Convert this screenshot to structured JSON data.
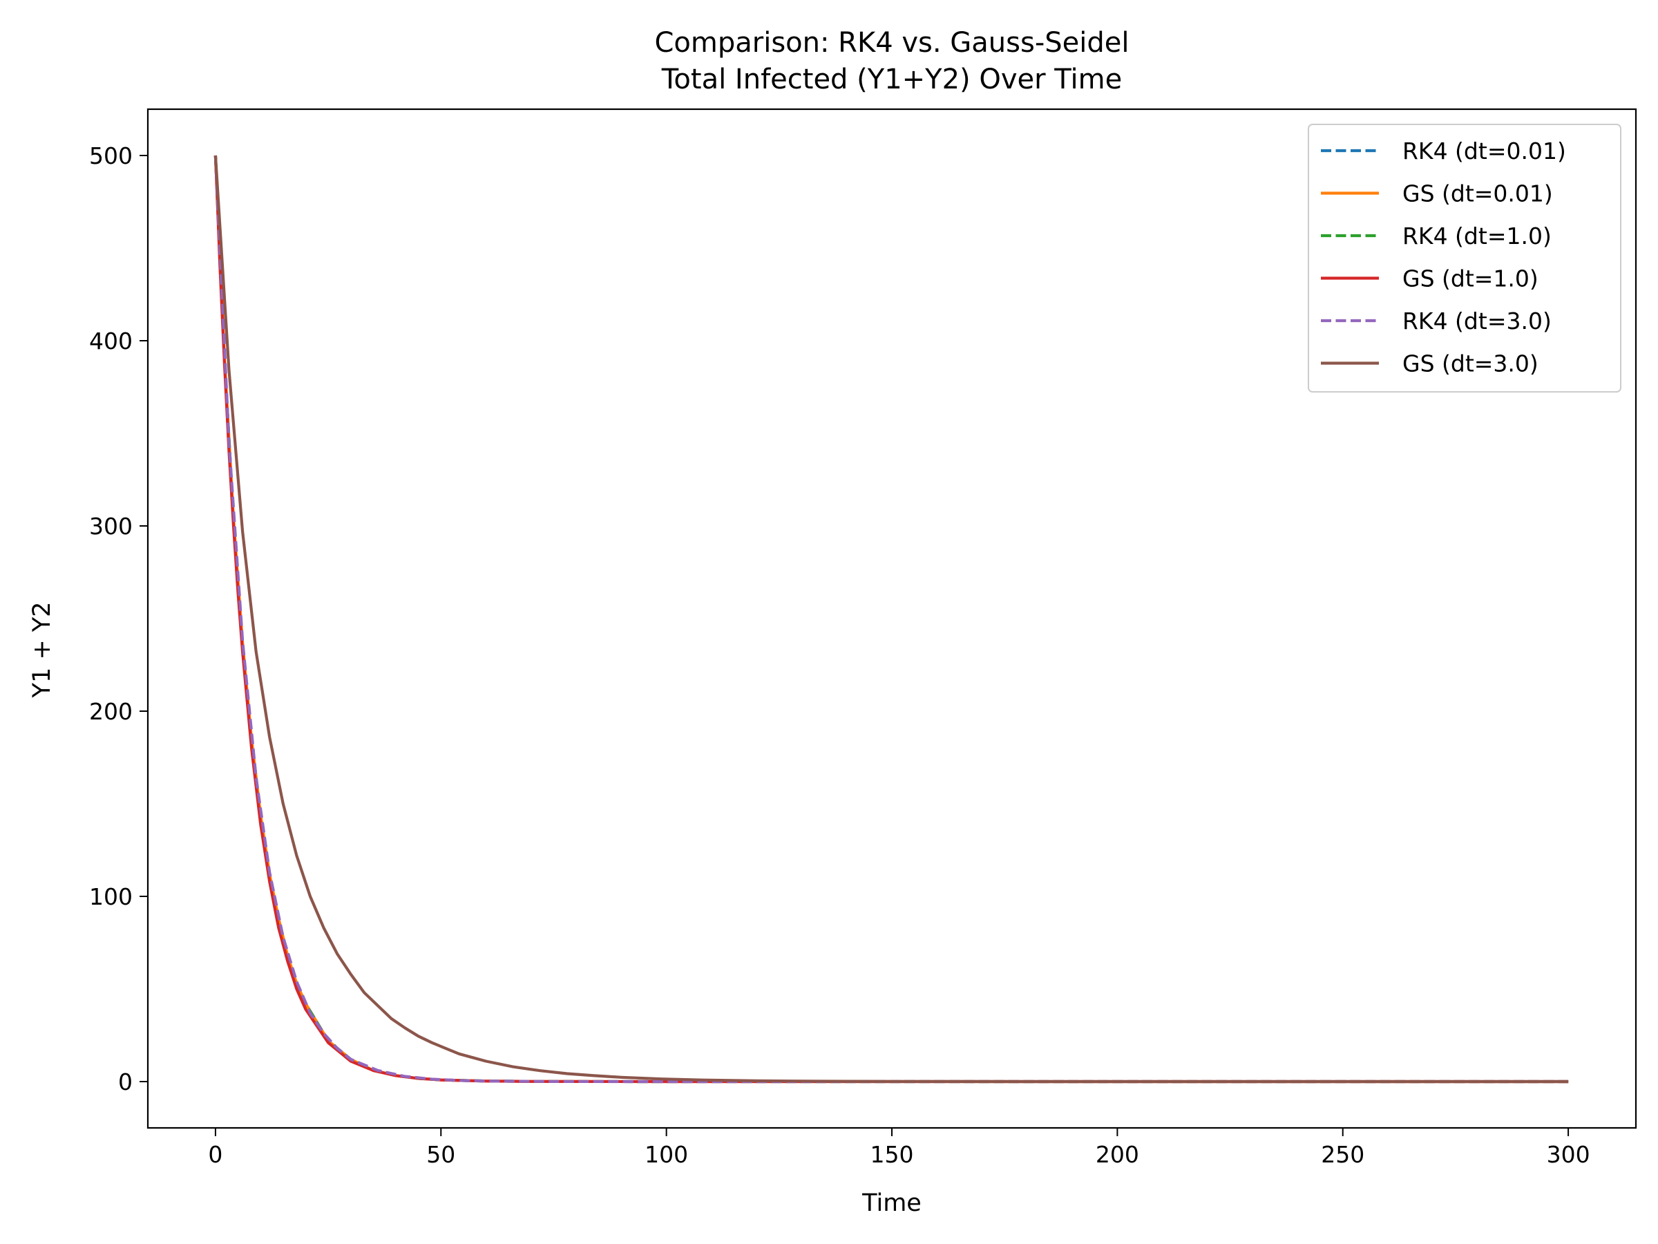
{
  "chart_data": {
    "type": "line",
    "title": "Comparison: RK4 vs. Gauss-Seidel",
    "subtitle": "Total Infected (Y1+Y2) Over Time",
    "xlabel": "Time",
    "ylabel": "Y1 + Y2",
    "xlim": [
      -15,
      315
    ],
    "ylim": [
      -25,
      525
    ],
    "xticks": [
      0,
      50,
      100,
      150,
      200,
      250,
      300
    ],
    "yticks": [
      0,
      100,
      200,
      300,
      400,
      500
    ],
    "grid": false,
    "legend_position": "top-right",
    "series": [
      {
        "name": "RK4 (dt=0.01)",
        "color": "#1f77b4",
        "style": "dashed",
        "x": [
          0,
          2,
          4,
          6,
          8,
          10,
          12,
          14,
          16,
          18,
          20,
          25,
          30,
          35,
          40,
          45,
          50,
          60,
          70,
          80,
          100,
          150,
          200,
          250,
          300
        ],
        "y": [
          500,
          390,
          304,
          237,
          185,
          144,
          112,
          88,
          68,
          53,
          42,
          22,
          12,
          6,
          3.3,
          1.7,
          0.9,
          0.3,
          0.1,
          0.05,
          0,
          0,
          0,
          0,
          0
        ]
      },
      {
        "name": "GS (dt=0.01)",
        "color": "#ff7f0e",
        "style": "solid",
        "x": [
          0,
          2,
          4,
          6,
          8,
          10,
          12,
          14,
          16,
          18,
          20,
          25,
          30,
          35,
          40,
          45,
          50,
          60,
          70,
          80,
          100,
          150,
          200,
          250,
          300
        ],
        "y": [
          500,
          390,
          304,
          237,
          185,
          144,
          112,
          88,
          68,
          53,
          42,
          22,
          12,
          6,
          3.3,
          1.7,
          0.9,
          0.3,
          0.1,
          0.05,
          0,
          0,
          0,
          0,
          0
        ]
      },
      {
        "name": "RK4 (dt=1.0)",
        "color": "#2ca02c",
        "style": "dashed",
        "x": [
          0,
          2,
          4,
          6,
          8,
          10,
          12,
          14,
          16,
          18,
          20,
          25,
          30,
          35,
          40,
          45,
          50,
          60,
          70,
          80,
          100,
          150,
          200,
          250,
          300
        ],
        "y": [
          500,
          390,
          304,
          237,
          185,
          144,
          112,
          88,
          68,
          53,
          42,
          22,
          12,
          6,
          3.3,
          1.7,
          0.9,
          0.3,
          0.1,
          0.05,
          0,
          0,
          0,
          0,
          0
        ]
      },
      {
        "name": "GS (dt=1.0)",
        "color": "#d62728",
        "style": "solid",
        "x": [
          0,
          1,
          2,
          3,
          4,
          5,
          6,
          8,
          10,
          12,
          14,
          16,
          18,
          20,
          25,
          30,
          35,
          40,
          45,
          50,
          60,
          70,
          80,
          100,
          120,
          150,
          200,
          250,
          300
        ],
        "y": [
          500,
          440,
          387,
          340,
          300,
          264,
          232,
          180,
          139,
          108,
          83,
          65,
          50,
          39,
          21,
          11,
          6,
          3.2,
          1.7,
          0.9,
          0.25,
          0.07,
          0.02,
          0,
          0,
          0,
          0,
          0,
          0
        ]
      },
      {
        "name": "RK4 (dt=3.0)",
        "color": "#9467bd",
        "style": "dashed",
        "x": [
          0,
          3,
          6,
          9,
          12,
          15,
          18,
          21,
          24,
          27,
          30,
          36,
          42,
          48,
          54,
          60,
          75,
          90,
          120,
          150,
          200,
          250,
          300
        ],
        "y": [
          500,
          345,
          238,
          164,
          113,
          78,
          54,
          37,
          26,
          18,
          12,
          6,
          2.8,
          1.3,
          0.6,
          0.3,
          0.05,
          0,
          0,
          0,
          0,
          0,
          0
        ]
      },
      {
        "name": "GS (dt=3.0)",
        "color": "#8c564b",
        "style": "solid",
        "x": [
          0,
          3,
          6,
          9,
          12,
          15,
          18,
          21,
          24,
          27,
          30,
          33,
          36,
          39,
          42,
          45,
          48,
          51,
          54,
          57,
          60,
          66,
          72,
          78,
          84,
          90,
          99,
          108,
          120,
          135,
          150,
          180,
          210,
          240,
          270,
          300
        ],
        "y": [
          500,
          384,
          297,
          232,
          186,
          150,
          122,
          100,
          83,
          69,
          58,
          48,
          41,
          34,
          29,
          24.5,
          21,
          18,
          15,
          13,
          11,
          8,
          5.9,
          4.3,
          3.2,
          2.3,
          1.4,
          0.85,
          0.42,
          0.17,
          0.07,
          0.01,
          0,
          0,
          0,
          0
        ]
      }
    ]
  }
}
